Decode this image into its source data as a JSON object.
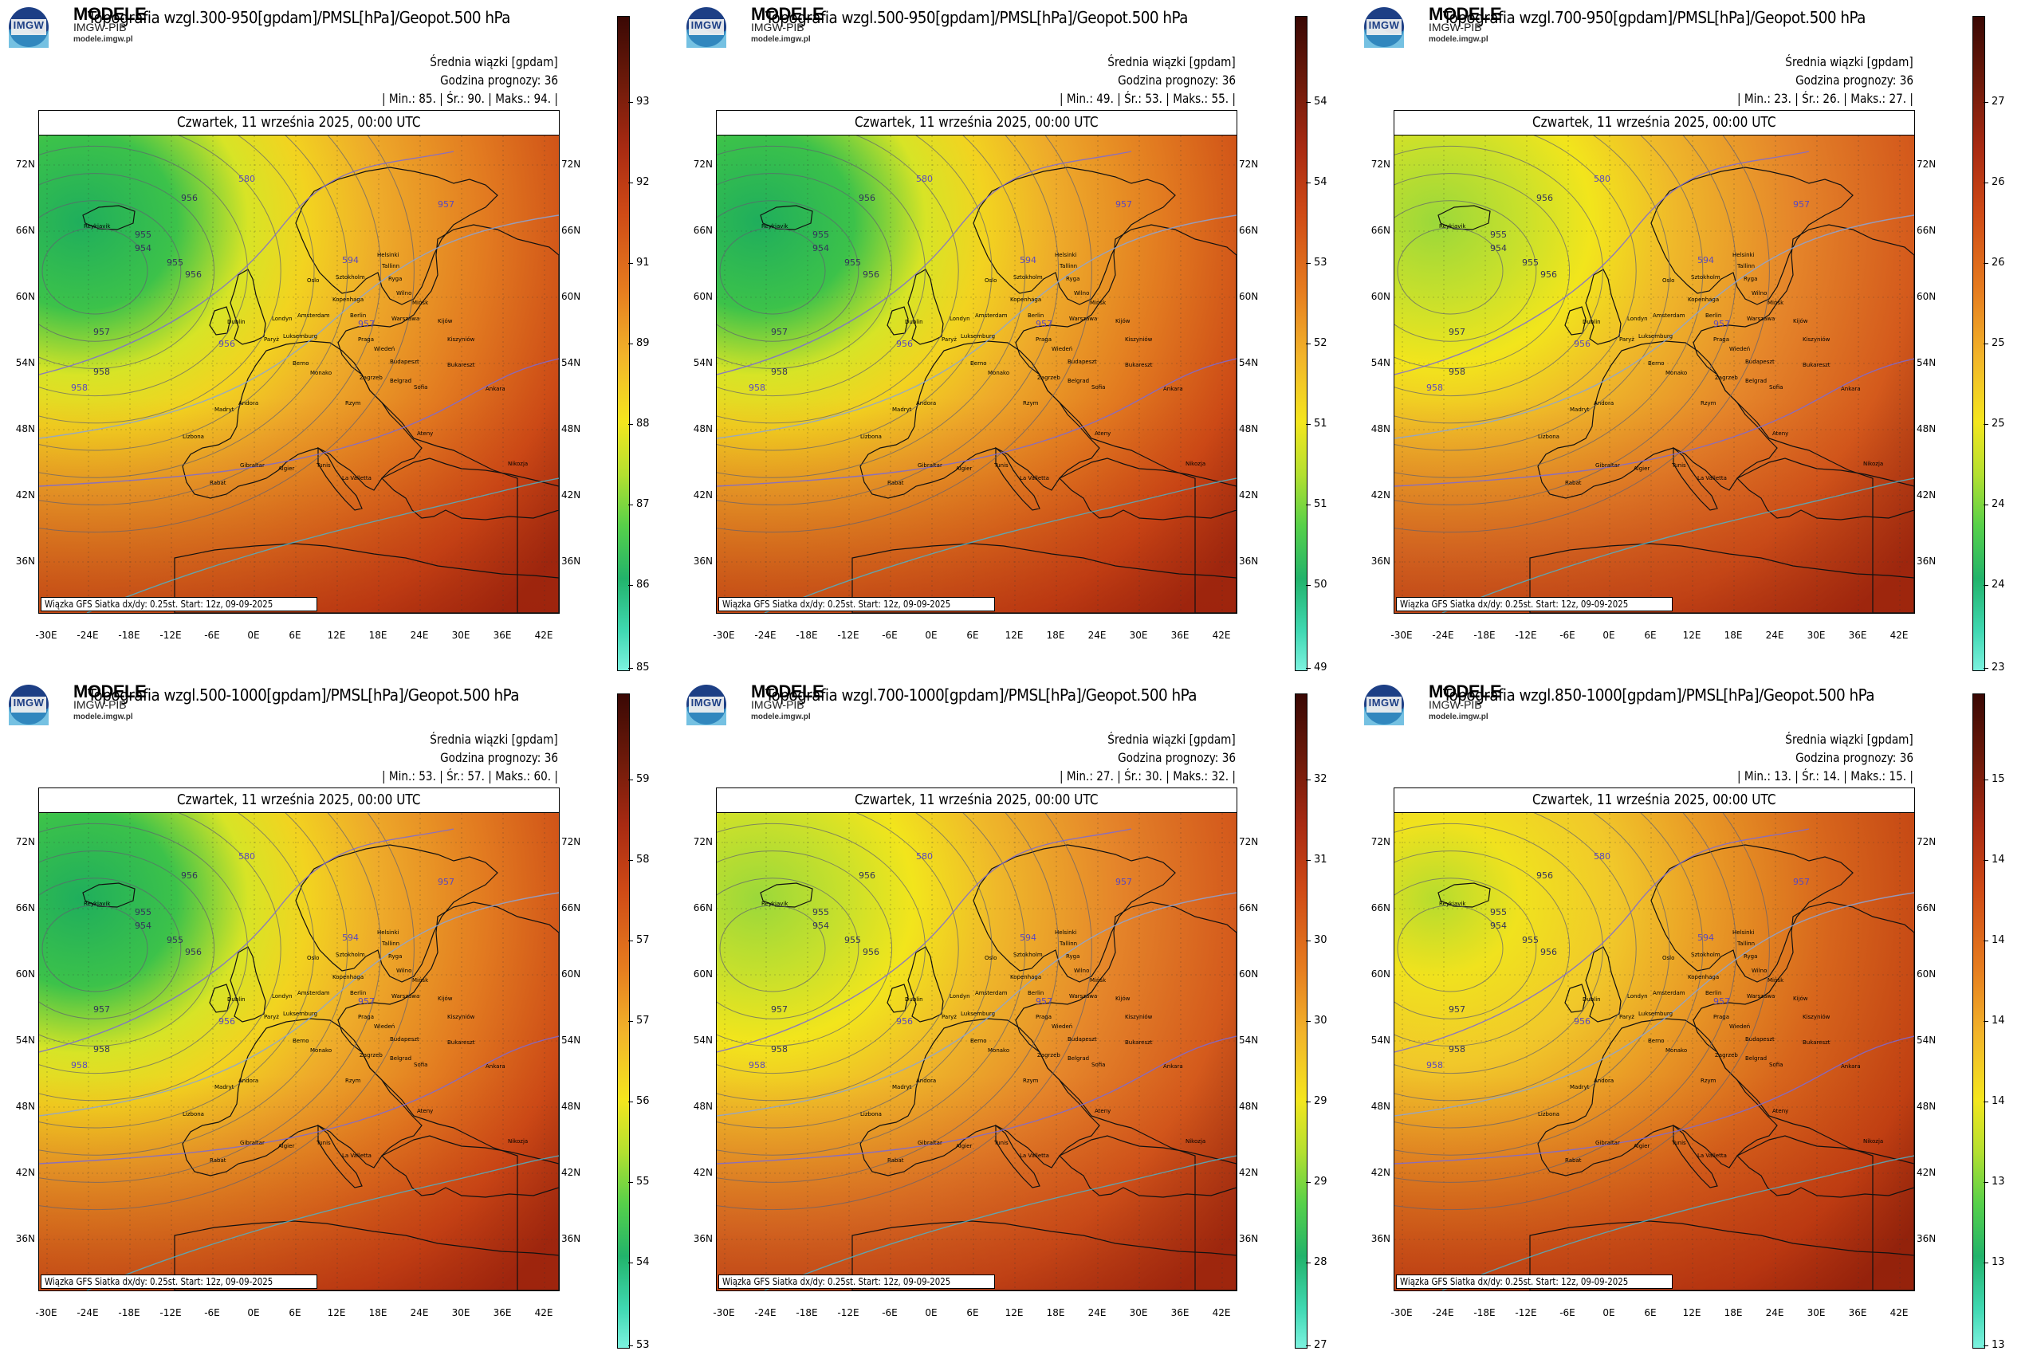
{
  "logo": {
    "letters": "IMGW",
    "name": "MODELE",
    "sub": "IMGW-PIB",
    "url": "modele.imgw.pl"
  },
  "common": {
    "subtitle": "Średnia wiązki [gpdam]",
    "forecast_hour": "Godzina prognozy: 36",
    "date": "Czwartek, 11 września 2025, 00:00 UTC",
    "credit": "Wiązka GFS Siatka dx/dy: 0.25st. Start: 12z, 09-09-2025",
    "lat_labels": [
      "72N",
      "66N",
      "60N",
      "54N",
      "48N",
      "42N",
      "36N"
    ],
    "lon_labels": [
      "-30E",
      "-24E",
      "-18E",
      "-12E",
      "-6E",
      "0E",
      "6E",
      "12E",
      "18E",
      "24E",
      "30E",
      "36E",
      "42E"
    ]
  },
  "panels": [
    {
      "title": "Topografia wzgl.300-950[gpdam]/PMSL[hPa]/Geopot.500 hPa",
      "min": "85.",
      "avg": "90.",
      "max": "94.",
      "ticks": [
        "93",
        "92",
        "91",
        "89",
        "88",
        "87",
        "86",
        "85"
      ]
    },
    {
      "title": "Topografia wzgl.500-950[gpdam]/PMSL[hPa]/Geopot.500 hPa",
      "min": "49.",
      "avg": "53.",
      "max": "55.",
      "ticks": [
        "54",
        "54",
        "53",
        "52",
        "51",
        "51",
        "50",
        "49"
      ]
    },
    {
      "title": "Topografia wzgl.700-950[gpdam]/PMSL[hPa]/Geopot.500 hPa",
      "min": "23.",
      "avg": "26.",
      "max": "27.",
      "ticks": [
        "27",
        "26",
        "26",
        "25",
        "25",
        "24",
        "24",
        "23"
      ]
    },
    {
      "title": "Topografia wzgl.500-1000[gpdam]/PMSL[hPa]/Geopot.500 hPa",
      "min": "53.",
      "avg": "57.",
      "max": "60.",
      "ticks": [
        "59",
        "58",
        "57",
        "57",
        "56",
        "55",
        "54",
        "53"
      ]
    },
    {
      "title": "Topografia wzgl.700-1000[gpdam]/PMSL[hPa]/Geopot.500 hPa",
      "min": "27.",
      "avg": "30.",
      "max": "32.",
      "ticks": [
        "32",
        "31",
        "30",
        "30",
        "29",
        "29",
        "28",
        "27"
      ]
    },
    {
      "title": "Topografia wzgl.850-1000[gpdam]/PMSL[hPa]/Geopot.500 hPa",
      "min": "13.",
      "avg": "14.",
      "max": "15.",
      "ticks": [
        "15",
        "14",
        "14",
        "14",
        "14",
        "13",
        "13",
        "13"
      ]
    }
  ],
  "map_labels": {
    "cities": [
      "Oslo",
      "Sztokholm",
      "Helsinki",
      "Tallinn",
      "Ryga",
      "Wilno",
      "Mińsk",
      "Kijów",
      "Warszawa",
      "Berlin",
      "Praga",
      "Wiedeń",
      "Budapeszt",
      "Bukareszt",
      "Londyn",
      "Paryż",
      "Amsterdam",
      "Kopenhaga",
      "Luksemburg",
      "Berno",
      "Zagrzeb",
      "Belgrad",
      "Sofia",
      "Ankara",
      "Madryt",
      "Lizbona",
      "Rzym",
      "Ateny",
      "Algier",
      "Tunis",
      "Rabat",
      "Reykjavik",
      "Dublin",
      "Kiszyniów",
      "Monako",
      "Andora",
      "Gibraltar",
      "La Valletta",
      "Nikozja"
    ],
    "isolines": [
      "956",
      "955",
      "954",
      "955",
      "956",
      "957",
      "958",
      "580",
      "594",
      "957",
      "956",
      "958",
      "957"
    ]
  },
  "colors": {
    "green": "#2bb55a",
    "yellow": "#f2e51c",
    "orange": "#ef9a24",
    "red": "#c83a14",
    "darkred": "#6b1208",
    "isobar": "#666677",
    "geopot": "#7b6ad6"
  }
}
